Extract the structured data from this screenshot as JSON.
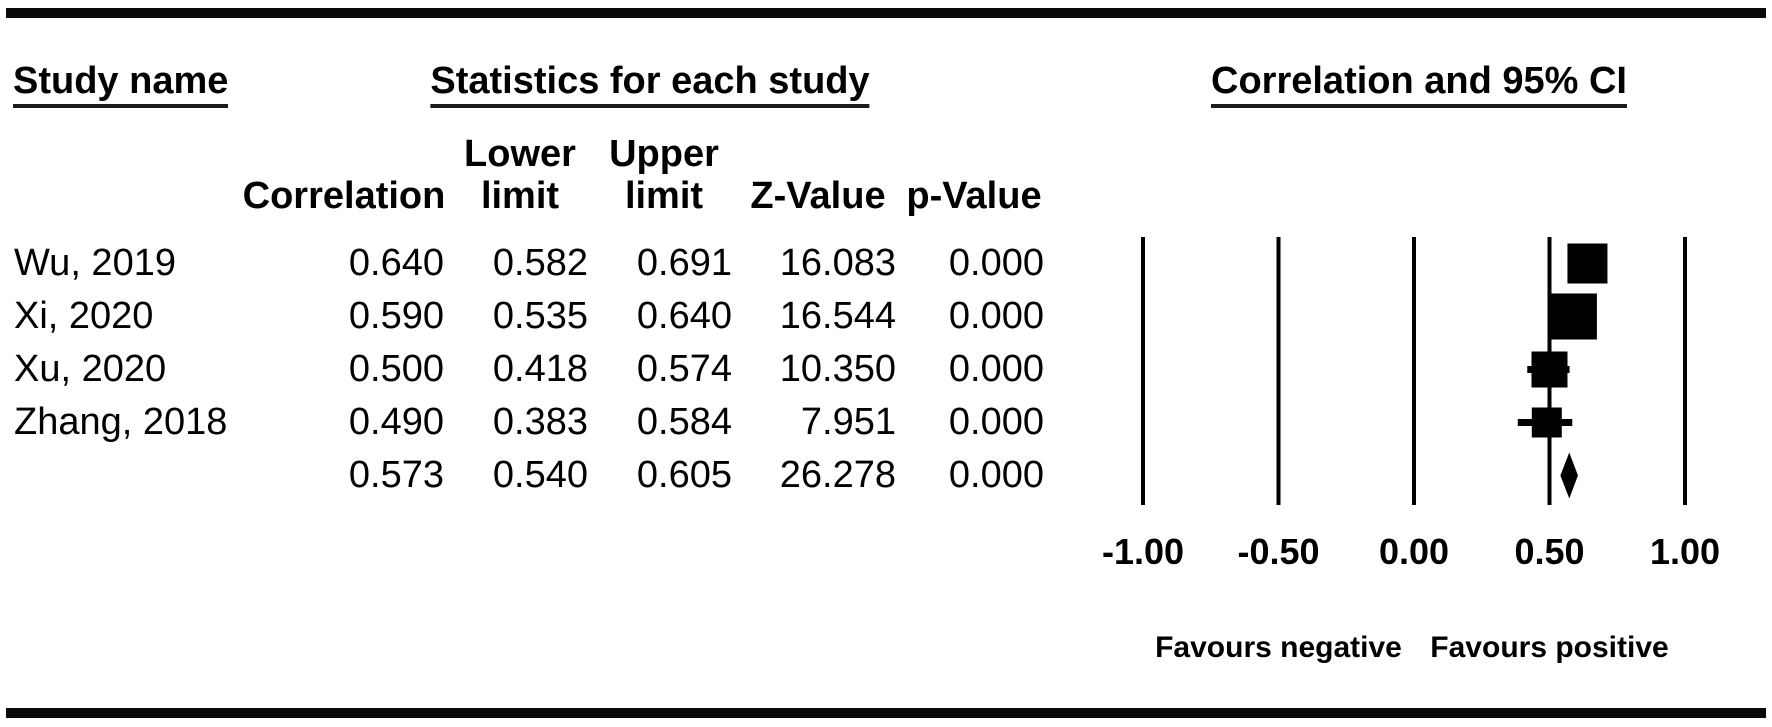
{
  "page": {
    "background": "#ffffff",
    "ink": "#000000"
  },
  "titles": {
    "study_name": "Study name",
    "statistics": "Statistics for each study",
    "correlation_ci": "Correlation and 95% CI"
  },
  "columns": {
    "correlation": "Correlation",
    "lower_line1": "Lower",
    "lower_line2": "limit",
    "upper_line1": "Upper",
    "upper_line2": "limit",
    "z_value": "Z-Value",
    "p_value": "p-Value"
  },
  "chart_data": {
    "type": "forest",
    "title": "Correlation and 95% CI",
    "effect_measure": "Correlation",
    "marker_color": "#000000",
    "x_axis": {
      "min": -1.0,
      "max": 1.0,
      "ticks": [
        {
          "value": -1.0,
          "label": "-1.00"
        },
        {
          "value": -0.5,
          "label": "-0.50"
        },
        {
          "value": 0.0,
          "label": "0.00"
        },
        {
          "value": 0.5,
          "label": "0.50"
        },
        {
          "value": 1.0,
          "label": "1.00"
        }
      ]
    },
    "footer_labels": {
      "negative": {
        "text": "Favours negative",
        "center_value": -0.5
      },
      "positive": {
        "text": "Favours positive",
        "center_value": 0.5
      }
    },
    "studies": [
      {
        "name": "Wu, 2019",
        "correlation": 0.64,
        "lower": 0.582,
        "upper": 0.691,
        "z": 16.083,
        "p": 0.0,
        "labels": {
          "correlation": "0.640",
          "lower": "0.582",
          "upper": "0.691",
          "z": "16.083",
          "p": "0.000"
        },
        "box_size": 40
      },
      {
        "name": "Xi, 2020",
        "correlation": 0.59,
        "lower": 0.535,
        "upper": 0.64,
        "z": 16.544,
        "p": 0.0,
        "labels": {
          "correlation": "0.590",
          "lower": "0.535",
          "upper": "0.640",
          "z": "16.544",
          "p": "0.000"
        },
        "box_size": 46
      },
      {
        "name": "Xu, 2020",
        "correlation": 0.5,
        "lower": 0.418,
        "upper": 0.574,
        "z": 10.35,
        "p": 0.0,
        "labels": {
          "correlation": "0.500",
          "lower": "0.418",
          "upper": "0.574",
          "z": "10.350",
          "p": "0.000"
        },
        "box_size": 36
      },
      {
        "name": "Zhang, 2018",
        "correlation": 0.49,
        "lower": 0.383,
        "upper": 0.584,
        "z": 7.951,
        "p": 0.0,
        "labels": {
          "correlation": "0.490",
          "lower": "0.383",
          "upper": "0.584",
          "z": "7.951",
          "p": "0.000"
        },
        "box_size": 30
      }
    ],
    "summary": {
      "name": "",
      "correlation": 0.573,
      "lower": 0.54,
      "upper": 0.605,
      "z": 26.278,
      "p": 0.0,
      "labels": {
        "correlation": "0.573",
        "lower": "0.540",
        "upper": "0.605",
        "z": "26.278",
        "p": "0.000"
      }
    }
  }
}
